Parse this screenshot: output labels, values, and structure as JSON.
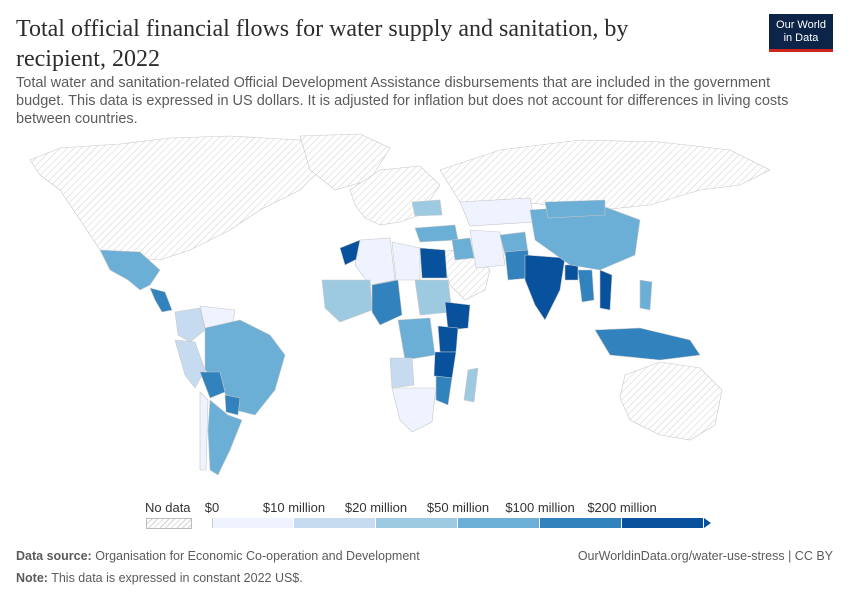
{
  "header": {
    "title": "Total official financial flows for water supply and sanitation, by recipient, 2022",
    "subtitle": "Total water and sanitation-related Official Development Assistance disbursements that are included in the government budget. This data is expressed in US dollars. It is adjusted for inflation but does not account for differences in living costs between countries."
  },
  "logo": {
    "line1": "Our World",
    "line2": "in Data"
  },
  "legend": {
    "no_data_label": "No data",
    "bins": [
      "$0",
      "$10 million",
      "$20 million",
      "$50 million",
      "$100 million",
      "$200 million"
    ],
    "colors": [
      "#eff3ff",
      "#c6dbef",
      "#9ecae1",
      "#6baed6",
      "#3182bd",
      "#08519c"
    ]
  },
  "footer": {
    "source_label": "Data source:",
    "source_value": "Organisation for Economic Co-operation and Development",
    "note_label": "Note:",
    "note_value": "This data is expressed in constant 2022 US$.",
    "url": "OurWorldinData.org/water-use-stress | CC BY"
  },
  "chart_data": {
    "type": "choropleth",
    "title": "Total official financial flows for water supply and sanitation, by recipient, 2022",
    "unit": "US dollars (constant 2022)",
    "scale_bins": [
      "$0",
      "$10 million",
      "$20 million",
      "$50 million",
      "$100 million",
      "$200 million"
    ],
    "regions": [
      {
        "name": "Mexico",
        "bin": 4
      },
      {
        "name": "Central America",
        "bin": 4
      },
      {
        "name": "Colombia",
        "bin": 2
      },
      {
        "name": "Venezuela",
        "bin": 1
      },
      {
        "name": "Peru",
        "bin": 2
      },
      {
        "name": "Brazil",
        "bin": 4
      },
      {
        "name": "Bolivia",
        "bin": 5
      },
      {
        "name": "Paraguay",
        "bin": 5
      },
      {
        "name": "Argentina",
        "bin": 4
      },
      {
        "name": "Chile",
        "bin": 1
      },
      {
        "name": "Morocco",
        "bin": 6
      },
      {
        "name": "Algeria",
        "bin": 1
      },
      {
        "name": "Libya",
        "bin": 1
      },
      {
        "name": "Egypt",
        "bin": 6
      },
      {
        "name": "Sudan",
        "bin": 3
      },
      {
        "name": "Nigeria",
        "bin": 5
      },
      {
        "name": "West Africa",
        "bin": 3
      },
      {
        "name": "Ethiopia",
        "bin": 6
      },
      {
        "name": "Kenya",
        "bin": 6
      },
      {
        "name": "Tanzania",
        "bin": 6
      },
      {
        "name": "DR Congo",
        "bin": 4
      },
      {
        "name": "Angola",
        "bin": 2
      },
      {
        "name": "Mozambique",
        "bin": 5
      },
      {
        "name": "Southern Africa",
        "bin": 1
      },
      {
        "name": "Madagascar",
        "bin": 3
      },
      {
        "name": "Turkey",
        "bin": 4
      },
      {
        "name": "Iraq",
        "bin": 4
      },
      {
        "name": "Iran",
        "bin": 1
      },
      {
        "name": "Afghanistan",
        "bin": 4
      },
      {
        "name": "Pakistan",
        "bin": 5
      },
      {
        "name": "India",
        "bin": 6
      },
      {
        "name": "Bangladesh",
        "bin": 6
      },
      {
        "name": "China",
        "bin": 4
      },
      {
        "name": "Mongolia",
        "bin": 4
      },
      {
        "name": "Myanmar",
        "bin": 5
      },
      {
        "name": "Vietnam",
        "bin": 6
      },
      {
        "name": "Philippines",
        "bin": 4
      },
      {
        "name": "Indonesia",
        "bin": 5
      },
      {
        "name": "Kazakhstan",
        "bin": 1
      },
      {
        "name": "Ukraine",
        "bin": 3
      }
    ]
  }
}
